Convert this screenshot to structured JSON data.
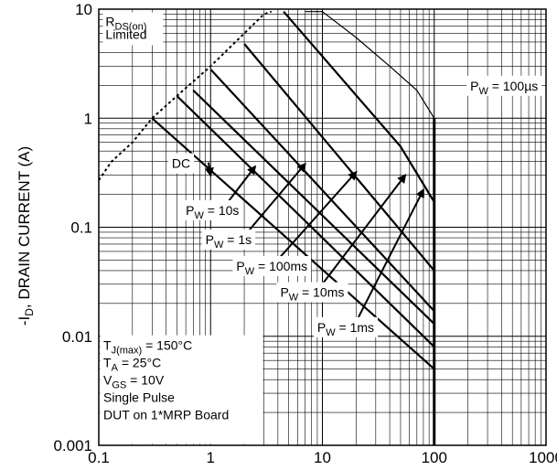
{
  "chart_data": {
    "type": "line",
    "title": "",
    "xscale": "log",
    "yscale": "log",
    "xlim": [
      0.1,
      1000
    ],
    "ylim": [
      0.001,
      10
    ],
    "grid": true,
    "ylabel": {
      "prefix": "-I",
      "sub": "D",
      "rest": ", DRAIN CURRENT (A)"
    },
    "x_ticks": [
      "0.1",
      "1",
      "10",
      "100",
      "1000"
    ],
    "y_ticks": [
      "0.001",
      "0.01",
      "0.1",
      "1",
      "10"
    ],
    "rds_limit": {
      "label_main": "R",
      "label_sub": "DS(on)",
      "label_line2": "Limited",
      "points": [
        [
          0.1,
          0.27
        ],
        [
          0.13,
          0.4
        ],
        [
          0.2,
          0.6
        ],
        [
          0.3,
          1.0
        ],
        [
          0.5,
          1.6
        ],
        [
          1.0,
          3.0
        ],
        [
          2.0,
          6.0
        ],
        [
          3.0,
          9.0
        ],
        [
          3.5,
          9.5
        ]
      ]
    },
    "series": [
      {
        "name": "DC",
        "points": [
          [
            0.3,
            1.0
          ],
          [
            100,
            0.005
          ]
        ]
      },
      {
        "name": "10s",
        "points": [
          [
            0.5,
            1.6
          ],
          [
            100,
            0.008
          ]
        ]
      },
      {
        "name": "1s",
        "points": [
          [
            0.7,
            1.8
          ],
          [
            100,
            0.013
          ]
        ]
      },
      {
        "name": "100ms",
        "points": [
          [
            1.0,
            2.8
          ],
          [
            100,
            0.017
          ]
        ]
      },
      {
        "name": "10ms",
        "points": [
          [
            2.0,
            4.8
          ],
          [
            100,
            0.04
          ]
        ]
      },
      {
        "name": "1ms",
        "points": [
          [
            4.5,
            9.5
          ],
          [
            50,
            0.55
          ],
          [
            100,
            0.17
          ]
        ]
      },
      {
        "name": "100µs",
        "points": [
          [
            7.0,
            9.5
          ],
          [
            10,
            9.5
          ],
          [
            20,
            5.5
          ],
          [
            40,
            3.0
          ],
          [
            70,
            1.8
          ],
          [
            100,
            1.0
          ]
        ]
      }
    ],
    "vertical_limit": {
      "x": 100,
      "ylim": [
        0.001,
        1.0
      ]
    },
    "annotations": [
      {
        "main": "DC",
        "sub": "",
        "tail": "",
        "box": [
          0.45,
          0.35
        ],
        "arrow_to": [
          1.0,
          0.3
        ]
      },
      {
        "main": "P",
        "sub": "W",
        "tail": " = 10s",
        "box": [
          0.6,
          0.13
        ],
        "arrow_to": [
          2.5,
          0.36
        ]
      },
      {
        "main": "P",
        "sub": "W",
        "tail": " = 1s",
        "box": [
          0.9,
          0.07
        ],
        "arrow_to": [
          7.0,
          0.38
        ]
      },
      {
        "main": "P",
        "sub": "W",
        "tail": " = 100ms",
        "box": [
          1.7,
          0.04
        ],
        "arrow_to": [
          20,
          0.32
        ]
      },
      {
        "main": "P",
        "sub": "W",
        "tail": " = 10ms",
        "box": [
          4.2,
          0.023
        ],
        "arrow_to": [
          55,
          0.3
        ]
      },
      {
        "main": "P",
        "sub": "W",
        "tail": " = 1ms",
        "box": [
          9.0,
          0.011
        ],
        "arrow_to": [
          80,
          0.22
        ]
      },
      {
        "main": "P",
        "sub": "W",
        "tail": " = 100µs",
        "box": [
          210,
          1.8
        ],
        "arrow_to": null
      }
    ],
    "conditions": [
      {
        "main": "T",
        "sub": "J(max)",
        "tail": " = 150°C"
      },
      {
        "main": "T",
        "sub": "A",
        "tail": " = 25°C"
      },
      {
        "main": "V",
        "sub": "GS",
        "tail": " = 10V"
      },
      {
        "main": "Single Pulse",
        "sub": "",
        "tail": ""
      },
      {
        "main": "DUT on 1*MRP Board",
        "sub": "",
        "tail": ""
      }
    ]
  }
}
